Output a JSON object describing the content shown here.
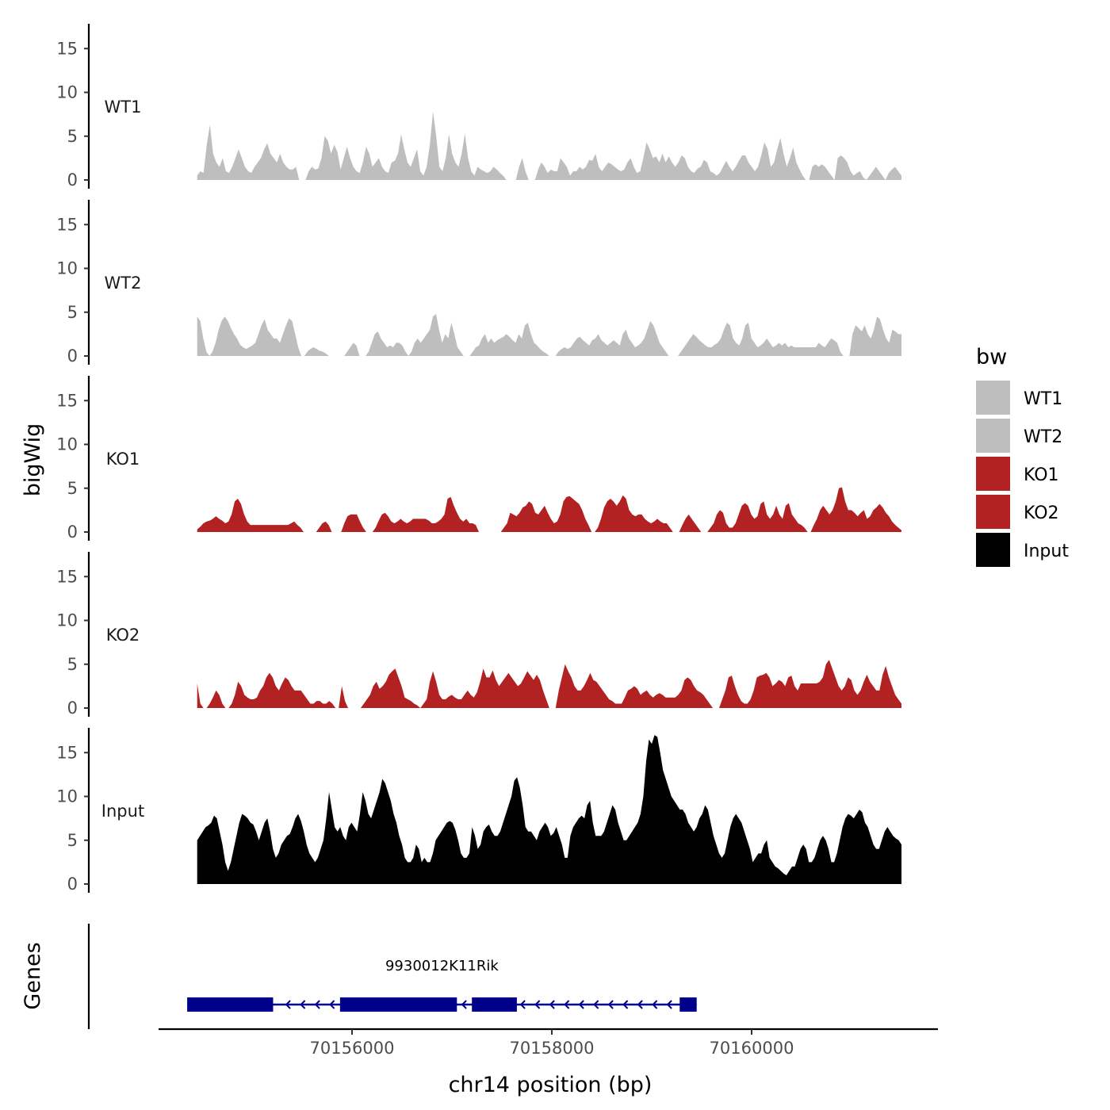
{
  "chart_data": {
    "type": "area",
    "title": "",
    "xlabel": "chr14 position (bp)",
    "ylabel": "bigWig",
    "genes_label": "Genes",
    "xlim": [
      70154000,
      70161700
    ],
    "ylim": [
      0,
      18
    ],
    "x_ticks": [
      70156000,
      70158000,
      70160000
    ],
    "x_tick_labels": [
      "70156000",
      "70158000",
      "70160000"
    ],
    "y_ticks": [
      0,
      5,
      10,
      15
    ],
    "y_tick_labels": [
      "0",
      "5",
      "10",
      "15"
    ],
    "data_range": [
      70154450,
      70161500
    ],
    "legend": {
      "title": "bw",
      "entries": [
        {
          "label": "WT1",
          "color": "#bebebe"
        },
        {
          "label": "WT2",
          "color": "#bebebe"
        },
        {
          "label": "KO1",
          "color": "#b22222"
        },
        {
          "label": "KO2",
          "color": "#b22222"
        },
        {
          "label": "Input",
          "color": "#000000"
        }
      ]
    },
    "series": [
      {
        "name": "WT1",
        "label": "WT1",
        "color": "#bebebe",
        "values": [
          0.5,
          1,
          0.8,
          4,
          6.3,
          3,
          2,
          1.5,
          2.5,
          1,
          0.8,
          1.5,
          2.5,
          3.5,
          2.5,
          1.5,
          1,
          0.8,
          1.5,
          2,
          2.5,
          3.5,
          4.2,
          3,
          2.5,
          2,
          3,
          2,
          1.5,
          1.2,
          1.2,
          1.5,
          0,
          0,
          0,
          1,
          1.5,
          1.2,
          1.3,
          2.5,
          5,
          4.5,
          3,
          4,
          3.2,
          1.2,
          2.5,
          3.8,
          2.5,
          1.5,
          1,
          0.8,
          2,
          3.8,
          3,
          1.5,
          2,
          2.5,
          1.5,
          1,
          0.8,
          2,
          2.2,
          3,
          5.2,
          3.5,
          2,
          1.5,
          2.5,
          3.5,
          1,
          0.5,
          1.5,
          4,
          7.8,
          5,
          1.5,
          1,
          2.5,
          5.2,
          3,
          2,
          1.5,
          3,
          5.3,
          2.5,
          1,
          0.5,
          1.5,
          1.2,
          1,
          0.8,
          1,
          1.5,
          1.2,
          0.8,
          0.5,
          0,
          0,
          0,
          0,
          1.5,
          2.5,
          1,
          0,
          0,
          0,
          1.2,
          2,
          1.5,
          0.8,
          1.2,
          1,
          1,
          2.5,
          2,
          1.5,
          0.5,
          1,
          1,
          1.5,
          1.2,
          1.5,
          2.3,
          2.2,
          3,
          1.5,
          1,
          1.5,
          2,
          1.8,
          1.5,
          1.2,
          1,
          1.2,
          2,
          2.5,
          1.5,
          0.8,
          1,
          2.5,
          4.3,
          3.5,
          2.5,
          2.7,
          2,
          3,
          2,
          2.7,
          2,
          1.5,
          2,
          2.8,
          2.5,
          1.5,
          1,
          0.8,
          1.3,
          1.5,
          2.3,
          2,
          1,
          0.8,
          0.5,
          0.8,
          1.5,
          2.2,
          1.5,
          1,
          1.5,
          2.2,
          2.8,
          2.8,
          2,
          1.5,
          1,
          1.5,
          2.8,
          4.3,
          3.5,
          1.5,
          2,
          3.5,
          4.8,
          3,
          1.5,
          2.5,
          3.7,
          2,
          1.2,
          0.5,
          0,
          0,
          1.5,
          1.8,
          1.5,
          1.8,
          1.5,
          1,
          0.5,
          0,
          2.5,
          2.8,
          2.5,
          2,
          1,
          0.5,
          0.8,
          1,
          0.3,
          0,
          0.5,
          1,
          1.5,
          1,
          0.5,
          0,
          0.8,
          1.2,
          1.5,
          1,
          0.5
        ],
        "pixels_note": "WT1 values sampled uniformly across data_range"
      },
      {
        "name": "WT2",
        "label": "WT2",
        "color": "#bebebe",
        "values": [
          4.5,
          4,
          2,
          0.5,
          0,
          0.5,
          1.5,
          3,
          4,
          4.5,
          4,
          3.2,
          2.5,
          2,
          1.3,
          1,
          0.8,
          1,
          1.2,
          1.5,
          2.5,
          3.5,
          4.2,
          3,
          2.5,
          2,
          2,
          1.5,
          2.5,
          3.5,
          4.3,
          4,
          2.5,
          1,
          0,
          0,
          0.5,
          0.8,
          1,
          0.8,
          0.6,
          0.5,
          0.3,
          0,
          0,
          0,
          0,
          0,
          0,
          0.5,
          1,
          1.5,
          1.2,
          0,
          0,
          0,
          0.5,
          1.5,
          2.5,
          2.8,
          2,
          1.5,
          1,
          1.2,
          1,
          1.5,
          1.5,
          1.2,
          0.5,
          0,
          0.5,
          1.5,
          2,
          1.5,
          2,
          2.5,
          3,
          4.5,
          4.8,
          3,
          1.5,
          2.5,
          2,
          3.8,
          2.5,
          1,
          0.5,
          0,
          0,
          0,
          0.5,
          1,
          1.2,
          2,
          2.5,
          1.5,
          2,
          1.5,
          1.8,
          2,
          2.2,
          2.5,
          2.2,
          1.8,
          1.5,
          2.5,
          2,
          3.5,
          3.8,
          2.5,
          1.5,
          1.2,
          0.8,
          0.5,
          0.3,
          0,
          0,
          0,
          0.5,
          0.8,
          1,
          0.8,
          1,
          1.5,
          2,
          2.2,
          1.8,
          1.5,
          1.2,
          1.8,
          2,
          2.5,
          1.8,
          1.5,
          1.2,
          1.5,
          1.8,
          1.5,
          1.2,
          2.5,
          3,
          2,
          1.5,
          1,
          1.2,
          1.5,
          2,
          3,
          4,
          3.5,
          2.5,
          1.5,
          1,
          0.5,
          0,
          0,
          0,
          0,
          0.5,
          1,
          1.5,
          2,
          2.5,
          2.2,
          1.8,
          1.5,
          1.2,
          1,
          1,
          1.3,
          1.5,
          2,
          3,
          3.8,
          3.5,
          2,
          1.5,
          1.2,
          2,
          3.5,
          3.8,
          2,
          1.5,
          1,
          1.2,
          1.5,
          2,
          1.5,
          1,
          1.2,
          1.5,
          1.2,
          1.5,
          1,
          1.2,
          1,
          1,
          1,
          1,
          1,
          1,
          1,
          1,
          1.5,
          1.2,
          1,
          1.5,
          2,
          1.8,
          1.5,
          0.5,
          0,
          0,
          0,
          2.5,
          3.5,
          3.2,
          2.8,
          3.5,
          2.5,
          2,
          3,
          4.5,
          4.2,
          3,
          2,
          1.5,
          3,
          2.8,
          2.5,
          2.5
        ]
      },
      {
        "name": "KO1",
        "label": "KO1",
        "color": "#b22222",
        "values": [
          0.3,
          0.6,
          1,
          1.2,
          1.3,
          1.5,
          1.8,
          1.5,
          1.3,
          1,
          1.2,
          2,
          3.5,
          3.8,
          3.2,
          2,
          1.2,
          0.8,
          0.8,
          0.8,
          0.8,
          0.8,
          0.8,
          0.8,
          0.8,
          0.8,
          0.8,
          0.8,
          0.8,
          0.8,
          1,
          1.2,
          0.8,
          0.5,
          0,
          0,
          0,
          0,
          0,
          0.5,
          1,
          1.2,
          0.8,
          0,
          0,
          0,
          0,
          1,
          1.8,
          2,
          2,
          2,
          1.2,
          0.5,
          0,
          0,
          0,
          0.5,
          1.3,
          2,
          2.2,
          1.8,
          1.2,
          1,
          1.2,
          1.5,
          1.2,
          1,
          1.2,
          1.5,
          1.5,
          1.5,
          1.5,
          1.5,
          1.3,
          1,
          1,
          1.2,
          1.5,
          2,
          3.8,
          4,
          3,
          2.2,
          1.5,
          1.2,
          1.5,
          1,
          1,
          0.8,
          0,
          0,
          0,
          0,
          0,
          0,
          0,
          0,
          0.5,
          1,
          2.2,
          2,
          1.8,
          2.2,
          2.8,
          3,
          3.5,
          3.2,
          2.2,
          2,
          2.5,
          3,
          2.2,
          1.5,
          1,
          1.2,
          2,
          3.5,
          4,
          4.1,
          3.8,
          3.5,
          3.2,
          2.5,
          1.5,
          0.8,
          0,
          0,
          0.5,
          1.5,
          2.8,
          3.5,
          3.8,
          3.5,
          3,
          3.5,
          4.2,
          3.8,
          2.5,
          2,
          1.8,
          2,
          2,
          1.5,
          1.2,
          1,
          1.2,
          1.5,
          1.2,
          1,
          1,
          0.5,
          0,
          0,
          0,
          0.8,
          1.5,
          2,
          1.5,
          1,
          0.5,
          0,
          0,
          0,
          0.5,
          1,
          2,
          2.5,
          2.2,
          1,
          0.5,
          0.5,
          1,
          2,
          3,
          3.3,
          3,
          2,
          1.5,
          1.8,
          3.2,
          3.5,
          2,
          1.5,
          2,
          3,
          2,
          1.5,
          3,
          3.3,
          2,
          1.5,
          1,
          0.8,
          0.5,
          0,
          0,
          0.8,
          1.5,
          2.5,
          3,
          2.5,
          2,
          2.5,
          3.5,
          5,
          5.1,
          3.5,
          2.5,
          2.5,
          2.2,
          1.8,
          2.2,
          2.5,
          1.5,
          1.8,
          2.5,
          2.8,
          3.2,
          2.8,
          2.2,
          1.8,
          1.2,
          0.8,
          0.5,
          0.2
        ]
      },
      {
        "name": "KO2",
        "label": "KO2",
        "color": "#b22222",
        "values": [
          2.8,
          0.5,
          0,
          0,
          0.5,
          1.2,
          2,
          1.5,
          0.5,
          0,
          0,
          0.5,
          1.5,
          3,
          2.5,
          1.5,
          1.2,
          1,
          1,
          1.2,
          2,
          2.5,
          3.5,
          4,
          3.5,
          2.5,
          2,
          2.8,
          3.5,
          3.2,
          2.5,
          2,
          2,
          2,
          1.5,
          1,
          0.5,
          0.5,
          0.8,
          0.8,
          0.5,
          0.5,
          0.8,
          0.5,
          0,
          0,
          2.5,
          0.8,
          0,
          0,
          0,
          0,
          0,
          0.5,
          1,
          1.5,
          2.5,
          3,
          2.2,
          2.5,
          3,
          3.8,
          4.2,
          4.5,
          3.5,
          2.5,
          1.2,
          1,
          0.8,
          0.5,
          0.3,
          0,
          0.5,
          1,
          3,
          4.2,
          3,
          1.5,
          1,
          1,
          1.3,
          1.5,
          1.2,
          1,
          1,
          1.5,
          2,
          1.5,
          1.2,
          1.8,
          3,
          4.5,
          3.5,
          3.5,
          4.3,
          3.2,
          2.5,
          3,
          3.5,
          4,
          3.5,
          3,
          2.5,
          2.8,
          3.5,
          4.2,
          3.7,
          3.2,
          3.8,
          3.2,
          2,
          1,
          0,
          0,
          0,
          2,
          3.5,
          5,
          4.2,
          3.5,
          2.5,
          2,
          2,
          2.5,
          3.2,
          4,
          3.2,
          3,
          2.5,
          2,
          1.5,
          1,
          0.8,
          0.5,
          0.5,
          0.5,
          1.2,
          2,
          2.2,
          2.5,
          2.2,
          1.5,
          1.8,
          2,
          1.5,
          1.2,
          1.5,
          1.7,
          1.5,
          1.2,
          1.2,
          1.2,
          1.2,
          1.5,
          2,
          3.2,
          3.5,
          3.2,
          2.5,
          2,
          1.8,
          1.5,
          1,
          0.5,
          0,
          0,
          0,
          1,
          2,
          3.5,
          3.7,
          2.5,
          1.5,
          0.8,
          0.5,
          0.5,
          1,
          2,
          3.5,
          3.7,
          3.8,
          4,
          3.5,
          2.5,
          2.8,
          3.2,
          3,
          2.5,
          3.5,
          3.7,
          2.5,
          2,
          2.8,
          2.8,
          2.8,
          2.8,
          2.8,
          2.8,
          3,
          3.5,
          5,
          5.5,
          4.5,
          3.5,
          2.5,
          2,
          2.5,
          3.5,
          3.2,
          2,
          1.5,
          2,
          3,
          3.8,
          3,
          2.5,
          2,
          2,
          3.8,
          4.8,
          3.5,
          2.5,
          1.5,
          1,
          0.5
        ]
      },
      {
        "name": "Input",
        "label": "Input",
        "color": "#000000",
        "values": [
          5,
          5.5,
          6,
          6.5,
          6.7,
          7,
          7.8,
          7.5,
          6,
          4.5,
          2.5,
          1.5,
          2.5,
          4,
          5.5,
          7,
          8,
          7.8,
          7.5,
          7,
          6.8,
          6,
          5,
          6,
          7,
          7.5,
          6,
          4,
          3,
          3.5,
          4.5,
          5,
          5.5,
          5.7,
          6.5,
          7.5,
          8,
          7.2,
          6,
          4.5,
          3.5,
          3,
          2.5,
          3,
          4,
          5,
          7.5,
          10.5,
          8.5,
          6.5,
          6,
          6.5,
          5.5,
          5,
          6.5,
          7,
          6.5,
          6,
          8,
          10.5,
          9.5,
          8,
          7.5,
          8.5,
          9.5,
          10.5,
          12,
          11.5,
          10.5,
          9.5,
          8,
          7,
          5.5,
          4.5,
          3,
          2.5,
          2.5,
          3,
          4.5,
          4,
          2.5,
          3,
          2.5,
          2.5,
          3.5,
          5,
          5.5,
          6,
          6.5,
          7,
          7.2,
          7,
          6.2,
          5,
          3.5,
          3,
          3,
          3.5,
          6.5,
          5.5,
          4,
          4.5,
          6,
          6.5,
          6.8,
          6,
          5.5,
          5.5,
          6,
          7,
          8,
          9,
          10,
          11.8,
          12.2,
          11,
          9,
          6.5,
          6,
          6,
          5.5,
          5,
          6,
          6.5,
          7,
          6.5,
          5.5,
          5.8,
          6.5,
          5.5,
          4.5,
          3,
          3,
          5.5,
          6.5,
          7,
          7.5,
          7.8,
          7.5,
          9,
          9.5,
          7,
          5.5,
          5.5,
          5.5,
          6,
          7,
          8,
          9,
          8.5,
          7,
          6,
          5,
          5,
          5.5,
          6,
          6.5,
          7,
          8,
          10,
          14,
          16.5,
          16,
          17,
          16.8,
          15,
          13,
          12,
          11,
          10,
          9.5,
          9,
          8.5,
          8.5,
          8,
          7,
          6.5,
          6,
          6.5,
          7.5,
          8,
          9,
          8.5,
          7,
          5.5,
          4.5,
          3.5,
          3,
          3.5,
          5,
          6.5,
          7.5,
          8,
          7.5,
          7,
          6,
          5,
          4,
          2.5,
          3,
          3.5,
          3.5,
          4.5,
          5,
          3,
          2.5,
          2,
          1.8,
          1.5,
          1.2,
          1,
          1.5,
          2,
          2,
          3,
          4,
          4.5,
          4,
          2.5,
          2.5,
          3,
          4,
          5,
          5.5,
          5,
          4,
          2.5,
          2.5,
          3.5,
          5,
          6.5,
          7.5,
          8,
          7.8,
          7.5,
          8,
          8.5,
          8.2,
          7,
          6.5,
          5.5,
          4.5,
          4,
          4,
          5,
          6,
          6.5,
          6,
          5.5,
          5.2,
          5,
          4.5
        ]
      }
    ],
    "gene_track": {
      "gene_name": "9930012K11Rik",
      "strand": "-",
      "start": 70154350,
      "end": 70159450,
      "exons": [
        [
          70154350,
          70155210
        ],
        [
          70155880,
          70157050
        ],
        [
          70157200,
          70157650
        ],
        [
          70159280,
          70159450
        ]
      ],
      "color": "#00008b"
    }
  }
}
